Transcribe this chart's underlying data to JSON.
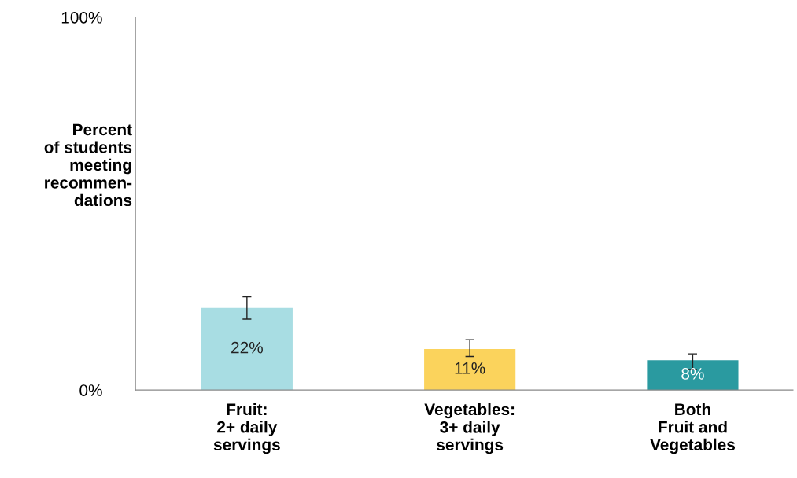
{
  "chart_data": {
    "type": "bar",
    "ylabel": "Percent\nof students\nmeeting\nrecommen-\ndations",
    "categories": [
      "Fruit:\n2+ daily\nservings",
      "Vegetables:\n3+ daily\nservings",
      "Both\nFruit and\nVegetables"
    ],
    "values": [
      22,
      11,
      8
    ],
    "colors": [
      "#a8dde3",
      "#fbd35c",
      "#2a9aa0"
    ],
    "errors": [
      [
        19,
        25
      ],
      [
        9,
        13.5
      ],
      [
        5.5,
        9.7
      ]
    ],
    "value_labels": [
      "22%",
      "11%",
      "8%"
    ],
    "ylim": [
      0,
      100
    ],
    "yticks": [
      {
        "value": 0,
        "label": "0%"
      },
      {
        "value": 100,
        "label": "100%"
      }
    ],
    "grid": false,
    "legend": false
  }
}
